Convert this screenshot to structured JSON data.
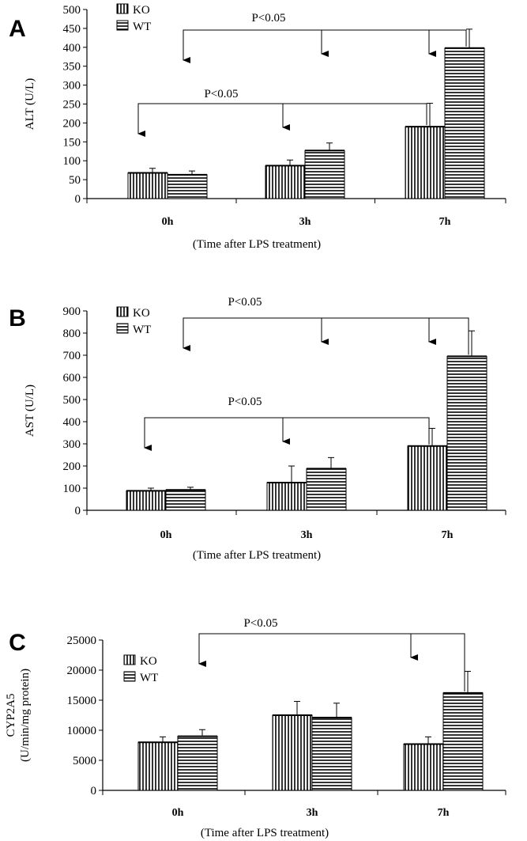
{
  "chart_data": [
    {
      "type": "bar",
      "panel_label": "A",
      "categories": [
        "0h",
        "3h",
        "7h"
      ],
      "series": [
        {
          "name": "KO",
          "values": [
            68,
            87,
            190
          ],
          "errors": [
            12,
            15,
            62
          ],
          "pattern": "vertical"
        },
        {
          "name": "WT",
          "values": [
            63,
            127,
            398
          ],
          "errors": [
            10,
            20,
            50
          ],
          "pattern": "horizontal"
        }
      ],
      "ylabel": "ALT (U/L)",
      "xlabel": "(Time after LPS treatment)",
      "ylim": [
        0,
        500
      ],
      "yticks": [
        0,
        50,
        100,
        150,
        200,
        250,
        300,
        350,
        400,
        450,
        500
      ],
      "legend_position": "top-left",
      "annotations": [
        {
          "text": "P<0.05",
          "from": {
            "category": "7h",
            "series": "WT"
          },
          "to": [
            {
              "category": "0h"
            },
            {
              "category": "3h"
            },
            {
              "category": "7h",
              "series": "KO"
            }
          ]
        },
        {
          "text": "P<0.05",
          "from": {
            "category": "7h",
            "series": "KO"
          },
          "to": [
            {
              "category": "0h"
            },
            {
              "category": "3h"
            }
          ]
        }
      ]
    },
    {
      "type": "bar",
      "panel_label": "B",
      "categories": [
        "0h",
        "3h",
        "7h"
      ],
      "series": [
        {
          "name": "KO",
          "values": [
            88,
            125,
            290
          ],
          "errors": [
            12,
            75,
            80
          ],
          "pattern": "vertical"
        },
        {
          "name": "WT",
          "values": [
            92,
            188,
            695
          ],
          "errors": [
            12,
            50,
            115
          ],
          "pattern": "horizontal"
        }
      ],
      "ylabel": "AST (U/L)",
      "xlabel": "(Time after LPS treatment)",
      "ylim": [
        0,
        900
      ],
      "yticks": [
        0,
        100,
        200,
        300,
        400,
        500,
        600,
        700,
        800,
        900
      ],
      "legend_position": "top-left",
      "annotations": [
        {
          "text": "P<0.05",
          "from": {
            "category": "7h",
            "series": "WT"
          },
          "to": [
            {
              "category": "0h"
            },
            {
              "category": "3h"
            },
            {
              "category": "7h",
              "series": "KO"
            }
          ]
        },
        {
          "text": "P<0.05",
          "from": {
            "category": "7h",
            "series": "KO"
          },
          "to": [
            {
              "category": "0h"
            },
            {
              "category": "3h"
            }
          ]
        }
      ]
    },
    {
      "type": "bar",
      "panel_label": "C",
      "categories": [
        "0h",
        "3h",
        "7h"
      ],
      "series": [
        {
          "name": "KO",
          "values": [
            8000,
            12500,
            7700
          ],
          "errors": [
            900,
            2300,
            1200
          ],
          "pattern": "vertical"
        },
        {
          "name": "WT",
          "values": [
            9000,
            12100,
            16200
          ],
          "errors": [
            1100,
            2400,
            3600
          ],
          "pattern": "horizontal"
        }
      ],
      "ylabel": "CYP2A5\n(U/min/mg protein)",
      "xlabel": "(Time after LPS treatment)",
      "ylim": [
        0,
        25000
      ],
      "yticks": [
        0,
        5000,
        10000,
        15000,
        20000,
        25000
      ],
      "legend_position": "top-left",
      "annotations": [
        {
          "text": "P<0.05",
          "from": {
            "category": "7h",
            "series": "WT"
          },
          "to": [
            {
              "category": "0h"
            },
            {
              "category": "7h",
              "series": "KO"
            }
          ]
        }
      ]
    }
  ]
}
